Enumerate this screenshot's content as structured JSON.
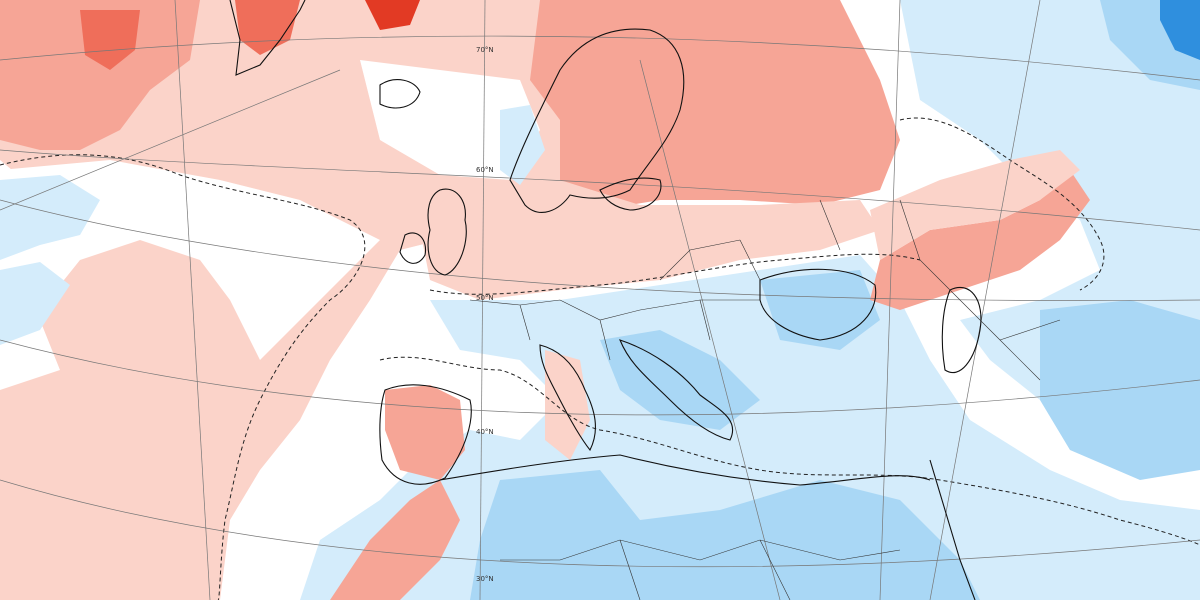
{
  "map": {
    "colors": {
      "warm_1": "#fbd3c9",
      "warm_2": "#f6a596",
      "warm_3": "#ef6e5a",
      "warm_4": "#e23a24",
      "neutral": "#ffffff",
      "cool_1": "#d4ecfb",
      "cool_2": "#a9d7f5",
      "cool_3": "#79bdee",
      "cool_4": "#2f8fde"
    },
    "latitude_labels": [
      "70°N",
      "60°N",
      "50°N",
      "40°N",
      "30°N"
    ],
    "region": "Europe, North Atlantic, North Africa, Middle East"
  }
}
